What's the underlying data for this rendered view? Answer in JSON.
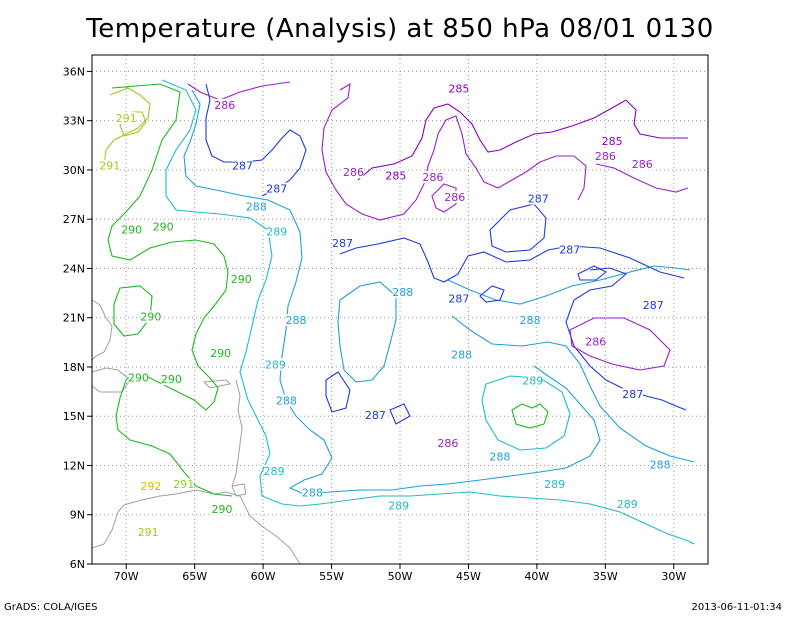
{
  "title": "Temperature (Analysis) at 850 hPa 08/01 0130",
  "footer_left": "GrADS: COLA/IGES",
  "footer_right": "2013-06-11-01:34",
  "map": {
    "lon_ticks": [
      "70W",
      "65W",
      "60W",
      "55W",
      "50W",
      "45W",
      "40W",
      "35W",
      "30W"
    ],
    "lat_ticks": [
      "36N",
      "33N",
      "30N",
      "27N",
      "24N",
      "21N",
      "18N",
      "15N",
      "12N",
      "9N",
      "6N"
    ],
    "colors": {
      "285": "#8a00b8",
      "286": "#9b1fc8",
      "287": "#1f3ad8",
      "288": "#1fa0d8",
      "289": "#1fbccc",
      "290": "#1fb81f",
      "291": "#9ccc1f",
      "292": "#e0b800",
      "coast": "#a0a0a0"
    },
    "contour_labels": [
      {
        "text": "285",
        "lon": -45.7,
        "lat": 34.9
      },
      {
        "text": "285",
        "lon": -50.3,
        "lat": 29.6
      },
      {
        "text": "285",
        "lon": -34.5,
        "lat": 31.7
      },
      {
        "text": "286",
        "lon": -62.8,
        "lat": 33.9
      },
      {
        "text": "286",
        "lon": -53.4,
        "lat": 29.8
      },
      {
        "text": "286",
        "lon": -47.6,
        "lat": 29.5
      },
      {
        "text": "286",
        "lon": -46.0,
        "lat": 28.3
      },
      {
        "text": "286",
        "lon": -35.0,
        "lat": 30.8
      },
      {
        "text": "286",
        "lon": -32.3,
        "lat": 30.3
      },
      {
        "text": "286",
        "lon": -35.7,
        "lat": 19.5
      },
      {
        "text": "286",
        "lon": -46.5,
        "lat": 13.3
      },
      {
        "text": "287",
        "lon": -61.5,
        "lat": 30.2
      },
      {
        "text": "287",
        "lon": -59.0,
        "lat": 28.8
      },
      {
        "text": "287",
        "lon": -54.2,
        "lat": 25.5
      },
      {
        "text": "287",
        "lon": -39.9,
        "lat": 28.2
      },
      {
        "text": "287",
        "lon": -37.6,
        "lat": 25.1
      },
      {
        "text": "287",
        "lon": -45.7,
        "lat": 22.1
      },
      {
        "text": "287",
        "lon": -31.5,
        "lat": 21.7
      },
      {
        "text": "287",
        "lon": -33.0,
        "lat": 16.3
      },
      {
        "text": "287",
        "lon": -51.8,
        "lat": 15.0
      },
      {
        "text": "288",
        "lon": -60.5,
        "lat": 27.7
      },
      {
        "text": "288",
        "lon": -49.8,
        "lat": 22.5
      },
      {
        "text": "288",
        "lon": -57.6,
        "lat": 20.8
      },
      {
        "text": "288",
        "lon": -40.5,
        "lat": 20.8
      },
      {
        "text": "288",
        "lon": -45.5,
        "lat": 18.7
      },
      {
        "text": "288",
        "lon": -58.3,
        "lat": 15.9
      },
      {
        "text": "288",
        "lon": -42.7,
        "lat": 12.5
      },
      {
        "text": "288",
        "lon": -56.4,
        "lat": 10.3
      },
      {
        "text": "288",
        "lon": -31.0,
        "lat": 12.0
      },
      {
        "text": "289",
        "lon": -59.0,
        "lat": 26.2
      },
      {
        "text": "289",
        "lon": -59.1,
        "lat": 18.1
      },
      {
        "text": "289",
        "lon": -40.3,
        "lat": 17.1
      },
      {
        "text": "289",
        "lon": -59.2,
        "lat": 11.6
      },
      {
        "text": "289",
        "lon": -38.7,
        "lat": 10.8
      },
      {
        "text": "289",
        "lon": -50.1,
        "lat": 9.5
      },
      {
        "text": "289",
        "lon": -33.4,
        "lat": 9.6
      },
      {
        "text": "290",
        "lon": -69.6,
        "lat": 26.3
      },
      {
        "text": "290",
        "lon": -67.3,
        "lat": 26.5
      },
      {
        "text": "290",
        "lon": -61.6,
        "lat": 23.3
      },
      {
        "text": "290",
        "lon": -68.2,
        "lat": 21.0
      },
      {
        "text": "290",
        "lon": -63.1,
        "lat": 18.8
      },
      {
        "text": "290",
        "lon": -69.1,
        "lat": 17.3
      },
      {
        "text": "290",
        "lon": -66.7,
        "lat": 17.2
      },
      {
        "text": "290",
        "lon": -63.0,
        "lat": 9.3
      },
      {
        "text": "291",
        "lon": -70.0,
        "lat": 33.1
      },
      {
        "text": "291",
        "lon": -71.2,
        "lat": 30.2
      },
      {
        "text": "291",
        "lon": -65.8,
        "lat": 10.8
      },
      {
        "text": "291",
        "lon": -68.4,
        "lat": 7.9
      },
      {
        "text": "292",
        "lon": -68.2,
        "lat": 10.7
      }
    ]
  }
}
